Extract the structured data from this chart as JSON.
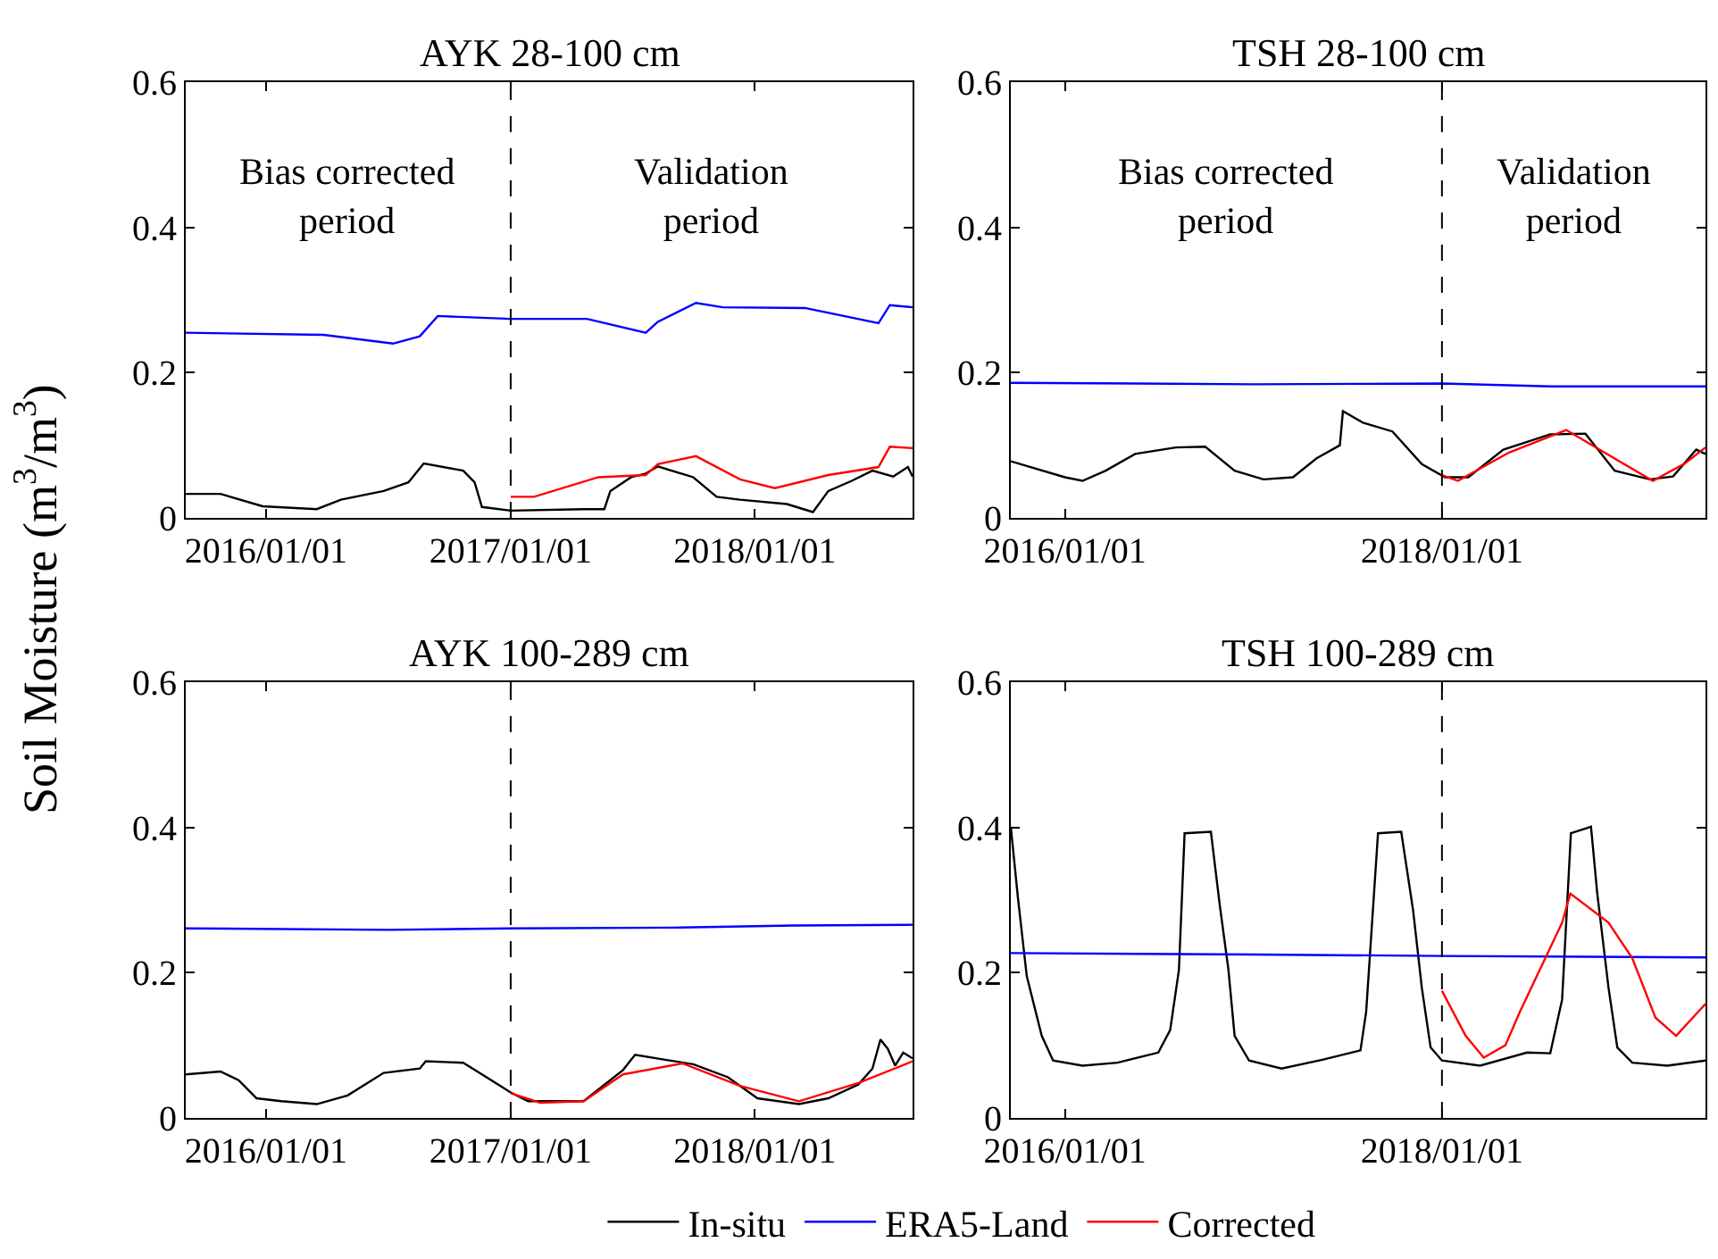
{
  "chart_data": [
    {
      "type": "line",
      "title": "AYK 28-100 cm",
      "ylabel": "Soil Moisture (m$^{3}$/m$^{3}$)",
      "xlim": [
        "2015-09-03",
        "2018-08-25"
      ],
      "xticks": [
        {
          "value": "2016-01-01",
          "label": "2016/01/01"
        },
        {
          "value": "2017-01-01",
          "label": "2017/01/01"
        },
        {
          "value": "2018-01-01",
          "label": "2018/01/01"
        }
      ],
      "ylim": [
        0,
        0.6
      ],
      "yticks": [
        0,
        0.2,
        0.4,
        0.6
      ],
      "legend": "bottom",
      "annotations": [
        "Bias corrected\nperiod",
        "Validation\nperiod"
      ],
      "ref_lines": [
        {
          "axis": "x",
          "value": "2017-01-01",
          "color": "#000000",
          "line_style": "dashed"
        }
      ],
      "series": [
        {
          "name": "In-situ",
          "color": "#000000",
          "x": [
            "2015-09-03",
            "2015-10-25",
            "2015-12-27",
            "2016-03-17",
            "2016-04-22",
            "2016-06-25",
            "2016-08-01",
            "2016-08-24",
            "2016-10-22",
            "2016-11-08",
            "2016-11-19",
            "2017-01-01",
            "2017-04-20",
            "2017-05-21",
            "2017-05-30",
            "2017-06-30",
            "2017-07-22",
            "2017-08-09",
            "2017-10-01",
            "2017-11-05",
            "2017-12-10",
            "2018-02-18",
            "2018-03-29",
            "2018-04-21",
            "2018-05-26",
            "2018-06-26",
            "2018-07-27",
            "2018-08-18",
            "2018-08-25"
          ],
          "values": [
            0.033,
            0.033,
            0.016,
            0.012,
            0.025,
            0.037,
            0.049,
            0.075,
            0.065,
            0.049,
            0.015,
            0.01,
            0.012,
            0.012,
            0.037,
            0.056,
            0.061,
            0.071,
            0.056,
            0.029,
            0.025,
            0.019,
            0.008,
            0.037,
            0.051,
            0.065,
            0.057,
            0.07,
            0.057
          ]
        },
        {
          "name": "ERA5-Land",
          "color": "#0000ff",
          "x": [
            "2015-09-03",
            "2016-03-27",
            "2016-07-09",
            "2016-08-18",
            "2016-09-14",
            "2017-01-01",
            "2017-04-25",
            "2017-07-22",
            "2017-08-09",
            "2017-10-05",
            "2017-11-14",
            "2018-03-17",
            "2018-07-05",
            "2018-07-22",
            "2018-08-25"
          ],
          "values": [
            0.255,
            0.252,
            0.24,
            0.25,
            0.278,
            0.274,
            0.274,
            0.255,
            0.27,
            0.296,
            0.29,
            0.289,
            0.268,
            0.293,
            0.29
          ]
        },
        {
          "name": "Corrected",
          "color": "#ff0000",
          "x": [
            "2017-01-01",
            "2017-02-05",
            "2017-05-12",
            "2017-07-22",
            "2017-08-09",
            "2017-10-05",
            "2017-12-10",
            "2018-01-31",
            "2018-04-21",
            "2018-07-05",
            "2018-07-22",
            "2018-08-25"
          ],
          "values": [
            0.029,
            0.029,
            0.056,
            0.059,
            0.074,
            0.085,
            0.053,
            0.041,
            0.059,
            0.07,
            0.098,
            0.096
          ]
        }
      ]
    },
    {
      "type": "line",
      "title": "TSH 28-100 cm",
      "xlim": [
        "2015-09-18",
        "2019-05-27"
      ],
      "xticks": [
        {
          "value": "2016-01-01",
          "label": "2016/01/01"
        },
        {
          "value": "2018-01-01",
          "label": "2018/01/01"
        }
      ],
      "ylim": [
        0,
        0.6
      ],
      "yticks": [
        0,
        0.2,
        0.4,
        0.6
      ],
      "legend": "bottom",
      "annotations": [
        "Bias corrected\nperiod",
        "Validation\nperiod"
      ],
      "ref_lines": [
        {
          "axis": "x",
          "value": "2018-01-01",
          "color": "#000000",
          "line_style": "dashed"
        }
      ],
      "series": [
        {
          "name": "In-situ",
          "color": "#000000",
          "x": [
            "2015-09-18",
            "2016-01-01",
            "2016-02-04",
            "2016-03-20",
            "2016-05-16",
            "2016-08-03",
            "2016-09-29",
            "2016-11-25",
            "2017-01-20",
            "2017-03-18",
            "2017-05-03",
            "2017-06-17",
            "2017-06-23",
            "2017-08-01",
            "2017-09-27",
            "2017-11-23",
            "2018-01-07",
            "2018-02-21",
            "2018-04-30",
            "2018-07-30",
            "2018-10-06",
            "2018-12-02",
            "2019-02-08",
            "2019-03-25",
            "2019-05-09",
            "2019-05-27"
          ],
          "values": [
            0.078,
            0.056,
            0.051,
            0.065,
            0.088,
            0.097,
            0.098,
            0.065,
            0.053,
            0.056,
            0.082,
            0.1,
            0.147,
            0.131,
            0.119,
            0.074,
            0.056,
            0.056,
            0.094,
            0.115,
            0.116,
            0.065,
            0.053,
            0.057,
            0.094,
            0.088
          ]
        },
        {
          "name": "ERA5-Land",
          "color": "#0000ff",
          "x": [
            "2015-09-18",
            "2017-01-01",
            "2018-01-01",
            "2018-08-01",
            "2019-05-27"
          ],
          "values": [
            0.186,
            0.184,
            0.185,
            0.181,
            0.181
          ]
        },
        {
          "name": "Corrected",
          "color": "#ff0000",
          "x": [
            "2018-01-01",
            "2018-02-01",
            "2018-05-11",
            "2018-08-30",
            "2018-11-12",
            "2019-02-14",
            "2019-04-17",
            "2019-05-27"
          ],
          "values": [
            0.059,
            0.051,
            0.09,
            0.121,
            0.09,
            0.051,
            0.075,
            0.097
          ]
        }
      ]
    },
    {
      "type": "line",
      "title": "AYK 100-289 cm",
      "xlim": [
        "2015-09-03",
        "2018-08-25"
      ],
      "xticks": [
        {
          "value": "2016-01-01",
          "label": "2016/01/01"
        },
        {
          "value": "2017-01-01",
          "label": "2017/01/01"
        },
        {
          "value": "2018-01-01",
          "label": "2018/01/01"
        }
      ],
      "ylim": [
        0,
        0.6
      ],
      "yticks": [
        0,
        0.2,
        0.4,
        0.6
      ],
      "legend": "bottom",
      "ref_lines": [
        {
          "axis": "x",
          "value": "2017-01-01",
          "color": "#000000",
          "line_style": "dashed"
        }
      ],
      "series": [
        {
          "name": "In-situ",
          "color": "#000000",
          "x": [
            "2015-09-03",
            "2015-10-25",
            "2015-11-21",
            "2015-12-18",
            "2016-01-24",
            "2016-03-17",
            "2016-05-02",
            "2016-06-25",
            "2016-08-18",
            "2016-08-27",
            "2016-10-22",
            "2016-11-26",
            "2017-01-01",
            "2017-01-27",
            "2017-04-20",
            "2017-05-12",
            "2017-06-18",
            "2017-07-06",
            "2017-08-20",
            "2017-10-01",
            "2017-11-22",
            "2018-01-05",
            "2018-03-08",
            "2018-04-21",
            "2018-06-05",
            "2018-06-26",
            "2018-07-08",
            "2018-07-19",
            "2018-07-30",
            "2018-08-11",
            "2018-08-25"
          ],
          "values": [
            0.06,
            0.064,
            0.052,
            0.027,
            0.023,
            0.019,
            0.031,
            0.062,
            0.068,
            0.078,
            0.076,
            0.056,
            0.035,
            0.023,
            0.023,
            0.039,
            0.066,
            0.087,
            0.08,
            0.074,
            0.056,
            0.027,
            0.019,
            0.027,
            0.046,
            0.068,
            0.108,
            0.095,
            0.072,
            0.09,
            0.082
          ]
        },
        {
          "name": "ERA5-Land",
          "color": "#0000ff",
          "x": [
            "2015-09-03",
            "2016-07-01",
            "2017-01-01",
            "2017-09-01",
            "2018-03-01",
            "2018-08-25"
          ],
          "values": [
            0.261,
            0.259,
            0.261,
            0.262,
            0.265,
            0.266
          ]
        },
        {
          "name": "Corrected",
          "color": "#ff0000",
          "x": [
            "2017-01-01",
            "2017-02-14",
            "2017-04-20",
            "2017-06-18",
            "2017-09-15",
            "2017-12-10",
            "2018-03-08",
            "2018-06-05",
            "2018-08-25"
          ],
          "values": [
            0.034,
            0.021,
            0.023,
            0.06,
            0.075,
            0.044,
            0.023,
            0.048,
            0.078
          ]
        }
      ]
    },
    {
      "type": "line",
      "title": "TSH 100-289 cm",
      "xlim": [
        "2015-09-18",
        "2019-05-27"
      ],
      "xticks": [
        {
          "value": "2016-01-01",
          "label": "2016/01/01"
        },
        {
          "value": "2018-01-01",
          "label": "2018/01/01"
        }
      ],
      "ylim": [
        0,
        0.6
      ],
      "yticks": [
        0,
        0.2,
        0.4,
        0.6
      ],
      "legend": "bottom",
      "ref_lines": [
        {
          "axis": "x",
          "value": "2018-01-01",
          "color": "#000000",
          "line_style": "dashed"
        }
      ],
      "series": [
        {
          "name": "In-situ",
          "color": "#000000",
          "x": [
            "2015-09-18",
            "2015-10-02",
            "2015-10-19",
            "2015-11-17",
            "2015-12-09",
            "2016-02-04",
            "2016-04-12",
            "2016-06-30",
            "2016-07-23",
            "2016-08-09",
            "2016-08-20",
            "2016-10-10",
            "2016-10-27",
            "2016-11-13",
            "2016-11-25",
            "2016-12-23",
            "2017-02-24",
            "2017-05-14",
            "2017-07-27",
            "2017-08-07",
            "2017-08-30",
            "2017-10-14",
            "2017-11-06",
            "2017-11-23",
            "2017-12-10",
            "2018-01-01",
            "2018-03-16",
            "2018-06-15",
            "2018-07-30",
            "2018-08-22",
            "2018-09-08",
            "2018-10-17",
            "2018-10-29",
            "2018-11-20",
            "2018-12-07",
            "2019-01-05",
            "2019-03-14",
            "2019-05-27"
          ],
          "values": [
            0.401,
            0.302,
            0.195,
            0.113,
            0.079,
            0.072,
            0.076,
            0.09,
            0.121,
            0.204,
            0.392,
            0.394,
            0.294,
            0.204,
            0.113,
            0.079,
            0.068,
            0.08,
            0.093,
            0.146,
            0.392,
            0.394,
            0.286,
            0.179,
            0.097,
            0.079,
            0.072,
            0.09,
            0.089,
            0.163,
            0.392,
            0.401,
            0.31,
            0.179,
            0.097,
            0.076,
            0.072,
            0.079
          ]
        },
        {
          "name": "ERA5-Land",
          "color": "#0000ff",
          "x": [
            "2015-09-18",
            "2017-01-01",
            "2018-01-01",
            "2019-05-27"
          ],
          "values": [
            0.227,
            0.225,
            0.223,
            0.221
          ]
        },
        {
          "name": "Corrected",
          "color": "#ff0000",
          "x": [
            "2018-01-01",
            "2018-02-16",
            "2018-03-23",
            "2018-05-04",
            "2018-06-01",
            "2018-08-22",
            "2018-09-07",
            "2018-11-20",
            "2019-01-05",
            "2019-02-19",
            "2019-03-31",
            "2019-05-27"
          ],
          "values": [
            0.175,
            0.113,
            0.083,
            0.1,
            0.146,
            0.269,
            0.309,
            0.269,
            0.22,
            0.138,
            0.113,
            0.157
          ]
        }
      ]
    }
  ]
}
